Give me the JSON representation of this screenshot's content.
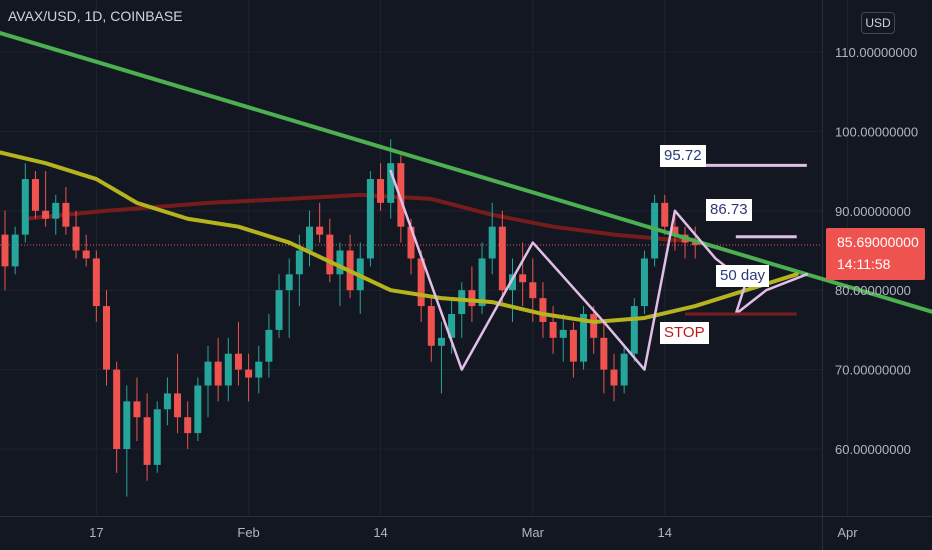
{
  "header": {
    "symbol": "AVAX/USD",
    "interval": "1D",
    "exchange": "COINBASE"
  },
  "currency_button": "USD",
  "last_price": {
    "value": "85.69000000",
    "countdown": "14:11:58"
  },
  "annotations": {
    "level_high": "95.72",
    "level_mid": "86.73",
    "ma_label": "50 day",
    "stop_label": "STOP"
  },
  "colors": {
    "background": "#131722",
    "up_candle": "#26a69a",
    "down_candle": "#ef5350",
    "trendline": "#4caf50",
    "ma50": "#b5b41e",
    "ma200": "#7b1c1c",
    "pattern": "#e1bee7",
    "axis_text": "#b2b5be"
  },
  "chart_data": {
    "type": "candlestick",
    "y_axis": {
      "range": [
        52,
        118
      ],
      "ticks": [
        "60.00000000",
        "70.00000000",
        "80.00000000",
        "90.00000000",
        "100.00000000",
        "110.00000000"
      ],
      "tick_values": [
        60,
        70,
        80,
        90,
        100,
        110
      ]
    },
    "x_axis": {
      "labels": [
        {
          "text": "17",
          "index": 9
        },
        {
          "text": "Feb",
          "index": 24
        },
        {
          "text": "14",
          "index": 37
        },
        {
          "text": "Mar",
          "index": 52
        },
        {
          "text": "14",
          "index": 65
        },
        {
          "text": "Apr",
          "index": 83
        }
      ]
    },
    "candles": [
      [
        87,
        90,
        80,
        83
      ],
      [
        83,
        88,
        82,
        87
      ],
      [
        87,
        96,
        86,
        94
      ],
      [
        94,
        95,
        89,
        90
      ],
      [
        90,
        95,
        88,
        89
      ],
      [
        89,
        92,
        87,
        91
      ],
      [
        91,
        93,
        87,
        88
      ],
      [
        88,
        90,
        84,
        85
      ],
      [
        85,
        87,
        83,
        84
      ],
      [
        84,
        85,
        76,
        78
      ],
      [
        78,
        80,
        68,
        70
      ],
      [
        70,
        71,
        57,
        60
      ],
      [
        60,
        68,
        54,
        66
      ],
      [
        66,
        69,
        61,
        64
      ],
      [
        64,
        67,
        56,
        58
      ],
      [
        58,
        66,
        57,
        65
      ],
      [
        65,
        69,
        63,
        67
      ],
      [
        67,
        72,
        62,
        64
      ],
      [
        64,
        66,
        60,
        62
      ],
      [
        62,
        69,
        61,
        68
      ],
      [
        68,
        73,
        64,
        71
      ],
      [
        71,
        74,
        66,
        68
      ],
      [
        68,
        74,
        66,
        72
      ],
      [
        72,
        76,
        68,
        70
      ],
      [
        70,
        72,
        66,
        69
      ],
      [
        69,
        73,
        67,
        71
      ],
      [
        71,
        77,
        69,
        75
      ],
      [
        75,
        82,
        74,
        80
      ],
      [
        80,
        84,
        74,
        82
      ],
      [
        82,
        87,
        78,
        85
      ],
      [
        85,
        90,
        83,
        88
      ],
      [
        88,
        91,
        86,
        87
      ],
      [
        87,
        89,
        81,
        82
      ],
      [
        82,
        86,
        78,
        85
      ],
      [
        85,
        87,
        79,
        80
      ],
      [
        80,
        86,
        77,
        84
      ],
      [
        84,
        95,
        83,
        94
      ],
      [
        94,
        96,
        90,
        91
      ],
      [
        91,
        99,
        89,
        96
      ],
      [
        96,
        97,
        86,
        88
      ],
      [
        88,
        89,
        82,
        84
      ],
      [
        84,
        85,
        76,
        78
      ],
      [
        78,
        79,
        71,
        73
      ],
      [
        73,
        76,
        67,
        74
      ],
      [
        74,
        79,
        72,
        77
      ],
      [
        77,
        81,
        74,
        80
      ],
      [
        80,
        83,
        76,
        78
      ],
      [
        78,
        86,
        77,
        84
      ],
      [
        84,
        91,
        82,
        88
      ],
      [
        88,
        90,
        78,
        80
      ],
      [
        80,
        84,
        76,
        82
      ],
      [
        82,
        86,
        78,
        81
      ],
      [
        81,
        84,
        76,
        79
      ],
      [
        79,
        81,
        74,
        76
      ],
      [
        76,
        78,
        72,
        74
      ],
      [
        74,
        77,
        71,
        75
      ],
      [
        75,
        76,
        69,
        71
      ],
      [
        71,
        78,
        70,
        77
      ],
      [
        77,
        78,
        72,
        74
      ],
      [
        74,
        76,
        67,
        70
      ],
      [
        70,
        72,
        66,
        68
      ],
      [
        68,
        73,
        67,
        72
      ],
      [
        72,
        79,
        71,
        78
      ],
      [
        78,
        85,
        77,
        84
      ],
      [
        84,
        92,
        83,
        91
      ],
      [
        91,
        92,
        87,
        88
      ],
      [
        88,
        90,
        85,
        87
      ],
      [
        87,
        88,
        84,
        86
      ],
      [
        86,
        88,
        84,
        85.69
      ]
    ],
    "overlays": [
      {
        "type": "trendline",
        "from": [
          -6,
          114.5
        ],
        "to": [
          96,
          75.5
        ]
      },
      {
        "type": "ma",
        "period": 50,
        "points": [
          [
            -6,
            99
          ],
          [
            4,
            96
          ],
          [
            9,
            94
          ],
          [
            13,
            91
          ],
          [
            18,
            89
          ],
          [
            23,
            88
          ],
          [
            28,
            86
          ],
          [
            33,
            83
          ],
          [
            38,
            80
          ],
          [
            43,
            79
          ],
          [
            48,
            78.5
          ],
          [
            53,
            77
          ],
          [
            58,
            76
          ],
          [
            63,
            76.5
          ],
          [
            68,
            78
          ],
          [
            73,
            80
          ],
          [
            78,
            82
          ]
        ]
      },
      {
        "type": "ma",
        "period": 200,
        "points": [
          [
            2,
            89
          ],
          [
            10,
            90
          ],
          [
            20,
            91
          ],
          [
            28,
            91.5
          ],
          [
            35,
            92
          ],
          [
            42,
            91.5
          ],
          [
            48,
            89.5
          ],
          [
            54,
            88
          ],
          [
            60,
            87
          ],
          [
            66,
            86.3
          ],
          [
            68,
            86.3
          ]
        ]
      },
      {
        "type": "pattern",
        "points": [
          [
            38,
            95
          ],
          [
            45,
            70
          ],
          [
            52,
            86
          ],
          [
            59,
            76
          ],
          [
            63,
            70
          ],
          [
            66,
            90
          ],
          [
            70,
            84
          ],
          [
            73,
            81
          ],
          [
            72,
            77
          ],
          [
            75,
            80
          ],
          [
            79,
            82
          ]
        ]
      },
      {
        "type": "hline",
        "value": 95.72,
        "from": 68,
        "to": 79
      },
      {
        "type": "hline",
        "value": 86.73,
        "from": 72,
        "to": 78
      },
      {
        "type": "hline",
        "value": 77,
        "from": 67,
        "to": 78
      }
    ]
  }
}
